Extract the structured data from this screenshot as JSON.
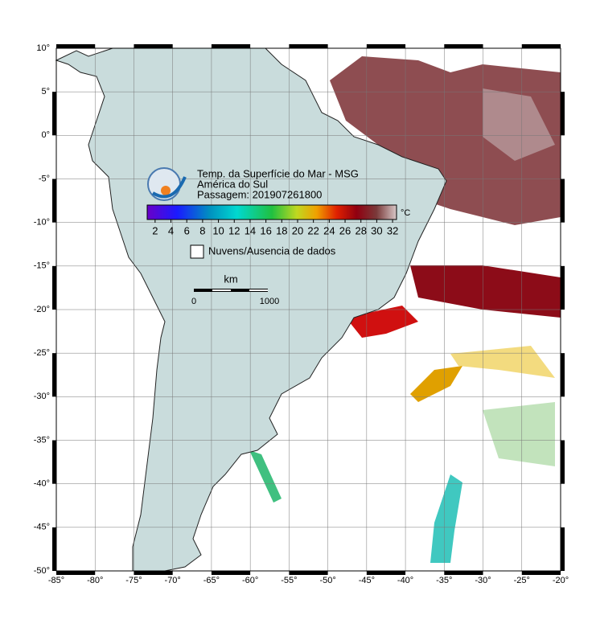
{
  "title": {
    "line1": "Temp. da Superfície do Mar - MSG",
    "line2": "América do Sul",
    "line3": "Passagem: 201907261800"
  },
  "colorbar": {
    "unit": "°C",
    "range": [
      1,
      32.5
    ],
    "ticks": [
      2,
      4,
      6,
      8,
      10,
      12,
      14,
      16,
      18,
      20,
      22,
      24,
      26,
      28,
      30,
      32
    ]
  },
  "legend": {
    "no_data": "Nuvens/Ausencia de dados"
  },
  "scale_bar": {
    "unit": "km",
    "labels": [
      "0",
      "1000"
    ]
  },
  "axes": {
    "lon_range": [
      -85,
      -20
    ],
    "lat_range": [
      -50,
      10
    ],
    "lon_ticks": [
      {
        "value": -85,
        "label": "-85°"
      },
      {
        "value": -80,
        "label": "-80°"
      },
      {
        "value": -75,
        "label": "-75°"
      },
      {
        "value": -70,
        "label": "-70°"
      },
      {
        "value": -65,
        "label": "-65°"
      },
      {
        "value": -60,
        "label": "-60°"
      },
      {
        "value": -55,
        "label": "-55°"
      },
      {
        "value": -50,
        "label": "-50°"
      },
      {
        "value": -45,
        "label": "-45°"
      },
      {
        "value": -40,
        "label": "-40°"
      },
      {
        "value": -35,
        "label": "-35°"
      },
      {
        "value": -30,
        "label": "-30°"
      },
      {
        "value": -25,
        "label": "-25°"
      },
      {
        "value": -20,
        "label": "-20°"
      }
    ],
    "lat_ticks": [
      {
        "value": 10,
        "label": "10°"
      },
      {
        "value": 5,
        "label": "5°"
      },
      {
        "value": 0,
        "label": "0°"
      },
      {
        "value": -5,
        "label": "-5°"
      },
      {
        "value": -10,
        "label": "-10°"
      },
      {
        "value": -15,
        "label": "-15°"
      },
      {
        "value": -20,
        "label": "-20°"
      },
      {
        "value": -25,
        "label": "-25°"
      },
      {
        "value": -30,
        "label": "-30°"
      },
      {
        "value": -35,
        "label": "-35°"
      },
      {
        "value": -40,
        "label": "-40°"
      },
      {
        "value": -45,
        "label": "-45°"
      },
      {
        "value": -50,
        "label": "-50°"
      }
    ]
  }
}
